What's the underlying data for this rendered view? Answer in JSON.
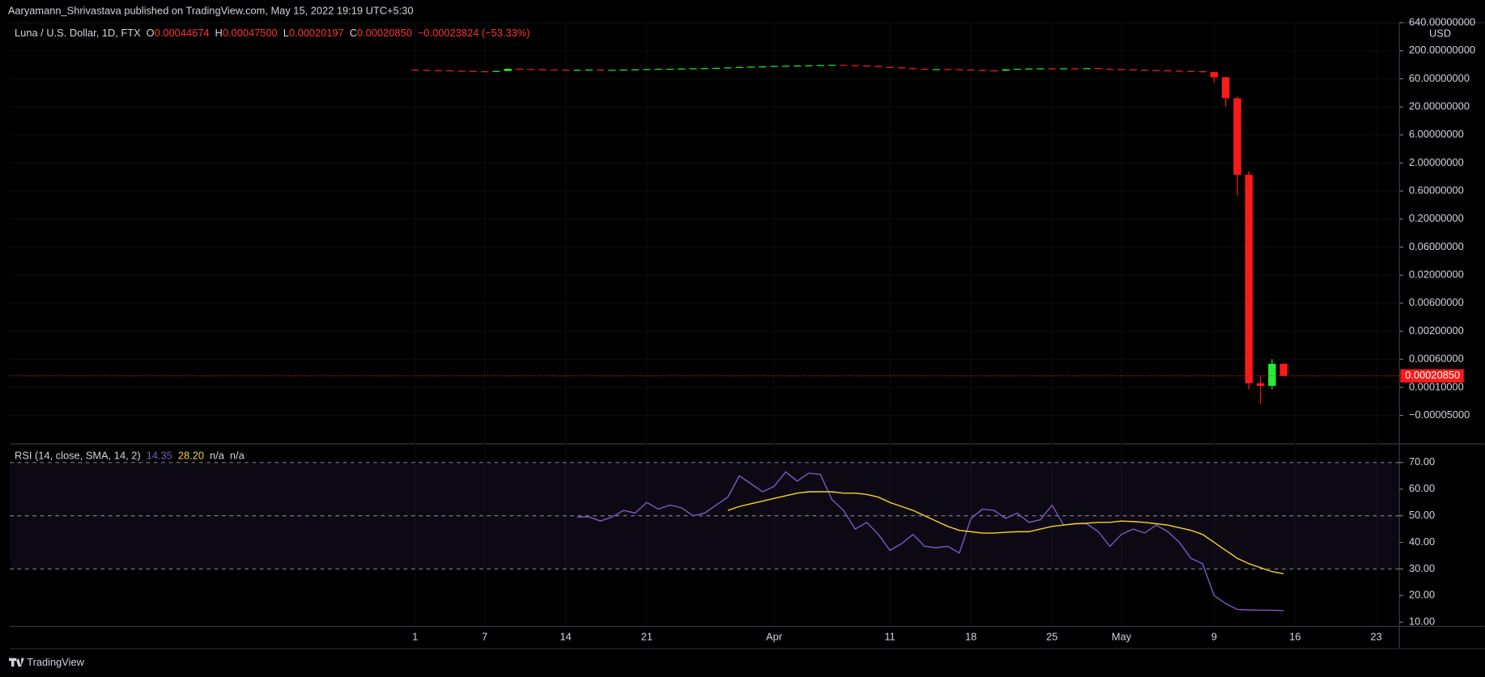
{
  "header": {
    "text": "Aaryamann_Shrivastava published on TradingView.com, May 15, 2022 19:19 UTC+5:30"
  },
  "footer": {
    "brand": "TradingView"
  },
  "chart_data": [
    {
      "type": "candlestick",
      "legend": {
        "title": "Luna / U.S. Dollar, 1D, FTX",
        "o_key": "O",
        "o": "0.00044674",
        "h_key": "H",
        "h": "0.00047500",
        "l_key": "L",
        "l": "0.00020197",
        "c_key": "C",
        "c": "0.00020850",
        "change": "−0.00023824 (−53.33%)"
      },
      "currency": "USD",
      "up_color": "#22ee33",
      "down_color": "#ff1a1a",
      "x": [
        "03-01",
        "03-02",
        "03-03",
        "03-04",
        "03-05",
        "03-06",
        "03-07",
        "03-08",
        "03-09",
        "03-10",
        "03-11",
        "03-12",
        "03-13",
        "03-14",
        "03-15",
        "03-16",
        "03-17",
        "03-18",
        "03-19",
        "03-20",
        "03-21",
        "03-22",
        "03-23",
        "03-24",
        "03-25",
        "03-26",
        "03-27",
        "03-28",
        "03-29",
        "03-30",
        "03-31",
        "04-01",
        "04-02",
        "04-03",
        "04-04",
        "04-05",
        "04-06",
        "04-07",
        "04-08",
        "04-09",
        "04-10",
        "04-11",
        "04-12",
        "04-13",
        "04-14",
        "04-15",
        "04-16",
        "04-17",
        "04-18",
        "04-19",
        "04-20",
        "04-21",
        "04-22",
        "04-23",
        "04-24",
        "04-25",
        "04-26",
        "04-27",
        "04-28",
        "04-29",
        "04-30",
        "05-01",
        "05-02",
        "05-03",
        "05-04",
        "05-05",
        "05-06",
        "05-07",
        "05-08",
        "05-09",
        "05-10",
        "05-11",
        "05-12",
        "05-13",
        "05-14",
        "05-15"
      ],
      "open": [
        89,
        88,
        87,
        86,
        85,
        84,
        83,
        82,
        84,
        92,
        91,
        90,
        89,
        88,
        87,
        88,
        89,
        88,
        88,
        89,
        90,
        91,
        92,
        92,
        93,
        94,
        95,
        96,
        98,
        100,
        101,
        102,
        104,
        105,
        106,
        107,
        108,
        109,
        108,
        106,
        104,
        100,
        98,
        95,
        92,
        90,
        91,
        90,
        89,
        88,
        86,
        85,
        90,
        92,
        93,
        94,
        92,
        94,
        93,
        95,
        92,
        91,
        90,
        88,
        87,
        86,
        85,
        84,
        83,
        80,
        64,
        28,
        1.2,
        0.00013,
        0.00011,
        0.00044674
      ],
      "high": [
        90,
        89,
        88,
        87,
        86,
        85,
        84,
        85,
        93,
        93,
        92,
        91,
        90,
        89,
        89,
        90,
        90,
        89,
        90,
        91,
        92,
        93,
        93,
        94,
        95,
        96,
        97,
        99,
        101,
        102,
        103,
        105,
        106,
        107,
        108,
        109,
        110,
        110,
        109,
        107,
        105,
        101,
        99,
        96,
        93,
        92,
        92,
        91,
        90,
        89,
        87,
        91,
        93,
        94,
        95,
        95,
        95,
        95,
        96,
        96,
        93,
        92,
        91,
        89,
        88,
        87,
        86,
        85,
        84,
        81,
        67,
        30,
        1.4,
        0.0002,
        0.0006,
        0.000475
      ],
      "low": [
        87,
        86,
        85,
        84,
        83,
        82,
        81,
        81,
        83,
        90,
        89,
        88,
        87,
        86,
        86,
        87,
        87,
        87,
        87,
        88,
        89,
        90,
        91,
        91,
        92,
        93,
        94,
        95,
        97,
        99,
        100,
        101,
        103,
        104,
        105,
        106,
        107,
        107,
        105,
        103,
        99,
        97,
        94,
        91,
        89,
        89,
        89,
        88,
        87,
        85,
        84,
        84,
        89,
        91,
        92,
        91,
        91,
        92,
        92,
        91,
        90,
        89,
        87,
        86,
        85,
        84,
        83,
        82,
        78,
        52,
        20,
        0.5,
        9e-05,
        1e-05,
        9e-05,
        0.00020197
      ],
      "close": [
        88,
        87,
        86,
        85,
        84,
        83,
        82,
        84,
        92,
        91,
        90,
        89,
        88,
        87,
        88,
        89,
        88,
        88,
        89,
        90,
        91,
        92,
        92,
        93,
        94,
        95,
        96,
        98,
        100,
        101,
        102,
        104,
        105,
        106,
        107,
        108,
        109,
        108,
        106,
        104,
        100,
        98,
        95,
        92,
        90,
        91,
        90,
        89,
        88,
        86,
        85,
        90,
        92,
        93,
        94,
        92,
        94,
        93,
        95,
        92,
        91,
        90,
        88,
        87,
        86,
        85,
        84,
        83,
        80,
        64,
        28,
        1.2,
        0.00013,
        0.00011,
        0.00045,
        0.0002085
      ],
      "xlim": [
        "01-25",
        "05-25"
      ],
      "xticks": [
        {
          "value": "03-01",
          "label": "1"
        },
        {
          "value": "03-07",
          "label": "7"
        },
        {
          "value": "03-14",
          "label": "14"
        },
        {
          "value": "03-21",
          "label": "21"
        },
        {
          "value": "04-01",
          "label": "Apr"
        },
        {
          "value": "04-11",
          "label": "11"
        },
        {
          "value": "04-18",
          "label": "18"
        },
        {
          "value": "04-25",
          "label": "25"
        },
        {
          "value": "05-01",
          "label": "May"
        },
        {
          "value": "05-09",
          "label": "9"
        },
        {
          "value": "05-16",
          "label": "16"
        },
        {
          "value": "05-23",
          "label": "23"
        }
      ],
      "log_scale": true,
      "ylim": [
        -0.0002,
        640
      ],
      "yticks": [
        {
          "value": 640,
          "label": "640.00000000"
        },
        {
          "value": 200,
          "label": "200.00000000"
        },
        {
          "value": 60,
          "label": "60.00000000"
        },
        {
          "value": 20,
          "label": "20.00000000"
        },
        {
          "value": 6,
          "label": "6.00000000"
        },
        {
          "value": 2,
          "label": "2.00000000"
        },
        {
          "value": 0.6,
          "label": "0.60000000"
        },
        {
          "value": 0.2,
          "label": "0.20000000"
        },
        {
          "value": 0.06,
          "label": "0.06000000"
        },
        {
          "value": 0.02,
          "label": "0.02000000"
        },
        {
          "value": 0.006,
          "label": "0.00600000"
        },
        {
          "value": 0.002,
          "label": "0.00200000"
        },
        {
          "value": 0.0006,
          "label": "0.00060000"
        },
        {
          "value": 0.0001,
          "label": "0.00010000"
        },
        {
          "value": -5e-05,
          "label": "−0.00005000"
        }
      ]
    },
    {
      "type": "line",
      "title": "RSI (14, close, SMA, 14, 2)",
      "legend_values": [
        {
          "text": "14.35",
          "color": "#7e57c2"
        },
        {
          "text": "28.20",
          "color": "#f7d21d"
        },
        {
          "text": "n/a",
          "color": "#d1d4dc"
        },
        {
          "text": "n/a",
          "color": "#d1d4dc"
        }
      ],
      "series": [
        {
          "color": "#7e57c2",
          "values": [
            null,
            null,
            null,
            null,
            null,
            null,
            null,
            null,
            null,
            null,
            null,
            null,
            null,
            null,
            49.5,
            49.6,
            48,
            49.5,
            52,
            51,
            55,
            52.5,
            54,
            53,
            50,
            51,
            54,
            57,
            65,
            62,
            59,
            61,
            66.5,
            63,
            66,
            65.5,
            56,
            52,
            45,
            47.5,
            43,
            37,
            39.5,
            43,
            38.5,
            38,
            38.5,
            36,
            49,
            52.5,
            52,
            49,
            51,
            47.5,
            48.5,
            54,
            46.5,
            47,
            47,
            44,
            38.5,
            43,
            45,
            43.5,
            46.5,
            44,
            40,
            34,
            32,
            20,
            17,
            14.8,
            14.6,
            14.5,
            14.5,
            14.35
          ]
        },
        {
          "color": "#f7d21d",
          "values": [
            null,
            null,
            null,
            null,
            null,
            null,
            null,
            null,
            null,
            null,
            null,
            null,
            null,
            null,
            null,
            null,
            null,
            null,
            null,
            null,
            null,
            null,
            null,
            null,
            null,
            null,
            null,
            52,
            53.5,
            54.5,
            55.5,
            56.5,
            57.5,
            58.5,
            59,
            59,
            59,
            58.5,
            58.5,
            58,
            57,
            55,
            53.5,
            52,
            50,
            48,
            46,
            44.5,
            44,
            43.5,
            43.5,
            43.8,
            44,
            44,
            45,
            46,
            46.5,
            47,
            47.2,
            47.5,
            47.5,
            48,
            47.8,
            47.5,
            47,
            46.5,
            45.5,
            44.5,
            43,
            40,
            37,
            34,
            32,
            30.5,
            29,
            28.2
          ]
        }
      ],
      "band": [
        30,
        70
      ],
      "band_color": "#7e57c2",
      "levels": [
        70,
        50,
        30
      ],
      "ylim": [
        8.6,
        76.8
      ],
      "yticks": [
        {
          "value": 10,
          "label": "10.00"
        },
        {
          "value": 20,
          "label": "20.00"
        },
        {
          "value": 30,
          "label": "30.00"
        },
        {
          "value": 40,
          "label": "40.00"
        },
        {
          "value": 50,
          "label": "50.00"
        },
        {
          "value": 60,
          "label": "60.00"
        },
        {
          "value": 70,
          "label": "70.00"
        }
      ]
    }
  ]
}
